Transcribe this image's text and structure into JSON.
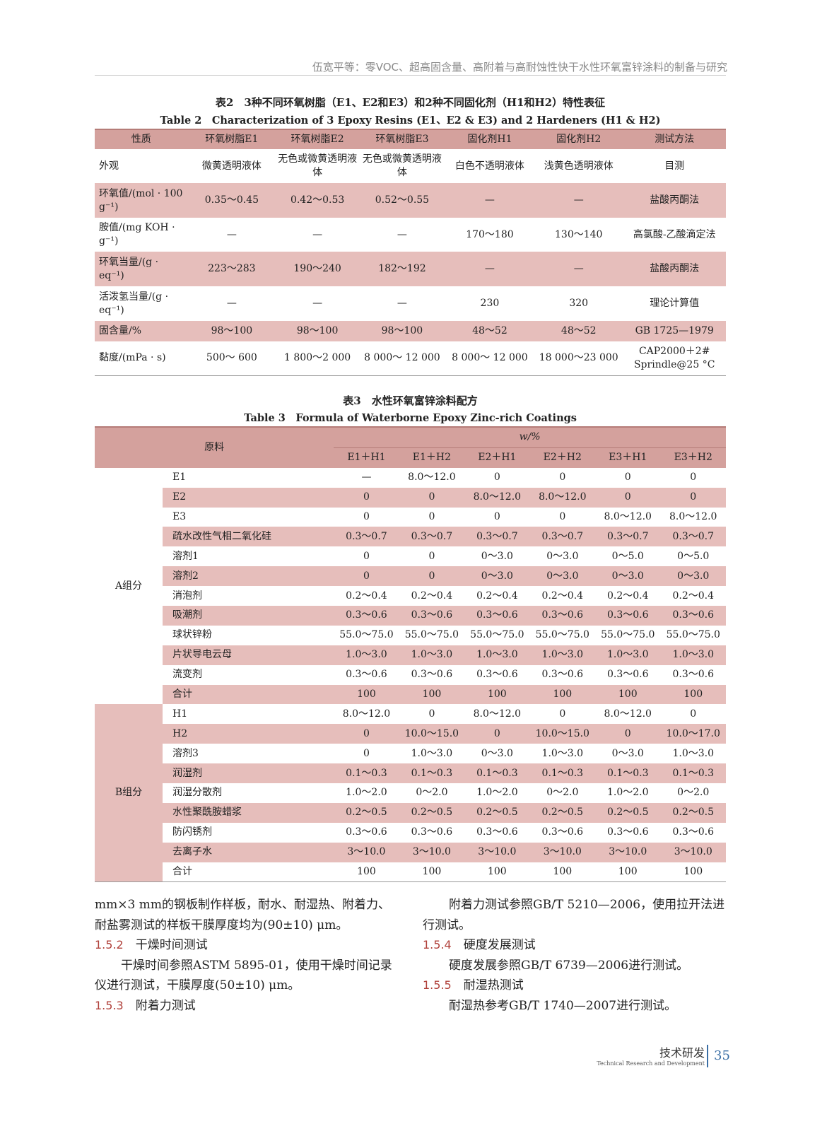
{
  "running_header": "伍宽平等：零VOC、超高固含量、高附着与高耐蚀性快干水性环氧富锌涂料的制备与研究",
  "table2": {
    "caption_cn": "表2　3种不同环氧树脂（E1、E2和E3）和2种不同固化剂（H1和H2）特性表征",
    "caption_en": "Table 2　Characterization of 3 Epoxy Resins (E1、E2 & E3) and 2 Hardeners (H1 & H2)",
    "headers": [
      "性质",
      "环氧树脂E1",
      "环氧树脂E2",
      "环氧树脂E3",
      "固化剂H1",
      "固化剂H2",
      "测试方法"
    ],
    "rows": [
      [
        "外观",
        "微黄透明液体",
        "无色或微黄透明液体",
        "无色或微黄透明液体",
        "白色不透明液体",
        "浅黄色透明液体",
        "目测"
      ],
      [
        "环氧值/(mol · 100 g⁻¹)",
        "0.35～0.45",
        "0.42～0.53",
        "0.52～0.55",
        "—",
        "—",
        "盐酸丙酮法"
      ],
      [
        "胺值/(mg KOH · g⁻¹)",
        "—",
        "—",
        "—",
        "170～180",
        "130～140",
        "高氯酸-乙酸滴定法"
      ],
      [
        "环氧当量/(g · eq⁻¹)",
        "223～283",
        "190～240",
        "182～192",
        "—",
        "—",
        "盐酸丙酮法"
      ],
      [
        "活泼氢当量/(g · eq⁻¹)",
        "—",
        "—",
        "—",
        "230",
        "320",
        "理论计算值"
      ],
      [
        "固含量/%",
        "98～100",
        "98～100",
        "98～100",
        "48～52",
        "48～52",
        "GB 1725—1979"
      ],
      [
        "黏度/(mPa · s)",
        "500～ 600",
        "1 800～2 000",
        "8 000～ 12 000",
        "8 000～ 12 000",
        "18 000～23 000",
        "CAP2000＋2# Sprindle@25 °C"
      ]
    ]
  },
  "table3": {
    "caption_cn": "表3　水性环氧富锌涂料配方",
    "caption_en": "Table 3　Formula of Waterborne Epoxy Zinc-rich Coatings",
    "header_material": "原料",
    "header_unit": "w/%",
    "columns": [
      "E1＋H1",
      "E1＋H2",
      "E2＋H1",
      "E2＋H2",
      "E3＋H1",
      "E3＋H2"
    ],
    "groups": [
      {
        "name": "A组分",
        "rows": [
          [
            "E1",
            "—",
            "8.0～12.0",
            "0",
            "0",
            "0",
            "0"
          ],
          [
            "E2",
            "0",
            "0",
            "8.0～12.0",
            "8.0～12.0",
            "0",
            "0"
          ],
          [
            "E3",
            "0",
            "0",
            "0",
            "0",
            "8.0～12.0",
            "8.0～12.0"
          ],
          [
            "疏水改性气相二氧化硅",
            "0.3～0.7",
            "0.3～0.7",
            "0.3～0.7",
            "0.3～0.7",
            "0.3～0.7",
            "0.3～0.7"
          ],
          [
            "溶剂1",
            "0",
            "0",
            "0～3.0",
            "0～3.0",
            "0～5.0",
            "0～5.0"
          ],
          [
            "溶剂2",
            "0",
            "0",
            "0～3.0",
            "0～3.0",
            "0～3.0",
            "0～3.0"
          ],
          [
            "消泡剂",
            "0.2～0.4",
            "0.2～0.4",
            "0.2～0.4",
            "0.2～0.4",
            "0.2～0.4",
            "0.2～0.4"
          ],
          [
            "吸潮剂",
            "0.3～0.6",
            "0.3～0.6",
            "0.3～0.6",
            "0.3～0.6",
            "0.3～0.6",
            "0.3～0.6"
          ],
          [
            "球状锌粉",
            "55.0～75.0",
            "55.0～75.0",
            "55.0～75.0",
            "55.0～75.0",
            "55.0～75.0",
            "55.0～75.0"
          ],
          [
            "片状导电云母",
            "1.0～3.0",
            "1.0～3.0",
            "1.0～3.0",
            "1.0～3.0",
            "1.0～3.0",
            "1.0～3.0"
          ],
          [
            "流变剂",
            "0.3～0.6",
            "0.3～0.6",
            "0.3～0.6",
            "0.3～0.6",
            "0.3～0.6",
            "0.3～0.6"
          ],
          [
            "合计",
            "100",
            "100",
            "100",
            "100",
            "100",
            "100"
          ]
        ]
      },
      {
        "name": "B组分",
        "rows": [
          [
            "H1",
            "8.0～12.0",
            "0",
            "8.0～12.0",
            "0",
            "8.0～12.0",
            "0"
          ],
          [
            "H2",
            "0",
            "10.0～15.0",
            "0",
            "10.0～15.0",
            "0",
            "10.0～17.0"
          ],
          [
            "溶剂3",
            "0",
            "1.0～3.0",
            "0～3.0",
            "1.0～3.0",
            "0～3.0",
            "1.0～3.0"
          ],
          [
            "润湿剂",
            "0.1～0.3",
            "0.1～0.3",
            "0.1～0.3",
            "0.1～0.3",
            "0.1～0.3",
            "0.1～0.3"
          ],
          [
            "润湿分散剂",
            "1.0～2.0",
            "0～2.0",
            "1.0～2.0",
            "0～2.0",
            "1.0～2.0",
            "0～2.0"
          ],
          [
            "水性聚酰胺蜡浆",
            "0.2～0.5",
            "0.2～0.5",
            "0.2～0.5",
            "0.2～0.5",
            "0.2～0.5",
            "0.2～0.5"
          ],
          [
            "防闪锈剂",
            "0.3～0.6",
            "0.3～0.6",
            "0.3～0.6",
            "0.3～0.6",
            "0.3～0.6",
            "0.3～0.6"
          ],
          [
            "去离子水",
            "3～10.0",
            "3～10.0",
            "3～10.0",
            "3～10.0",
            "3～10.0",
            "3～10.0"
          ],
          [
            "合计",
            "100",
            "100",
            "100",
            "100",
            "100",
            "100"
          ]
        ]
      }
    ]
  },
  "body": {
    "left": {
      "p1": "mm×3 mm的钢板制作样板，耐水、耐湿热、附着力、耐盐雾测试的样板干膜厚度均为(90±10) μm。",
      "s152_num": "1.5.2",
      "s152_title": "干燥时间测试",
      "p2": "干燥时间参照ASTM 5895-01，使用干燥时间记录仪进行测试，干膜厚度(50±10) μm。",
      "s153_num": "1.5.3",
      "s153_title": "附着力测试"
    },
    "right": {
      "p1": "附着力测试参照GB/T 5210—2006，使用拉开法进行测试。",
      "s154_num": "1.5.4",
      "s154_title": "硬度发展测试",
      "p2": "硬度发展参照GB/T 6739—2006进行测试。",
      "s155_num": "1.5.5",
      "s155_title": "耐湿热测试",
      "p3": "耐湿热参考GB/T 1740—2007进行测试。"
    }
  },
  "footer": {
    "section_cn": "技术研发",
    "section_en": "Technical Research and Development",
    "page_number": "35"
  },
  "colors": {
    "header_pink": "#d4a19d",
    "row_pink": "#e6bebb",
    "section_red": "#b0403a",
    "page_blue": "#3a6ea5"
  }
}
